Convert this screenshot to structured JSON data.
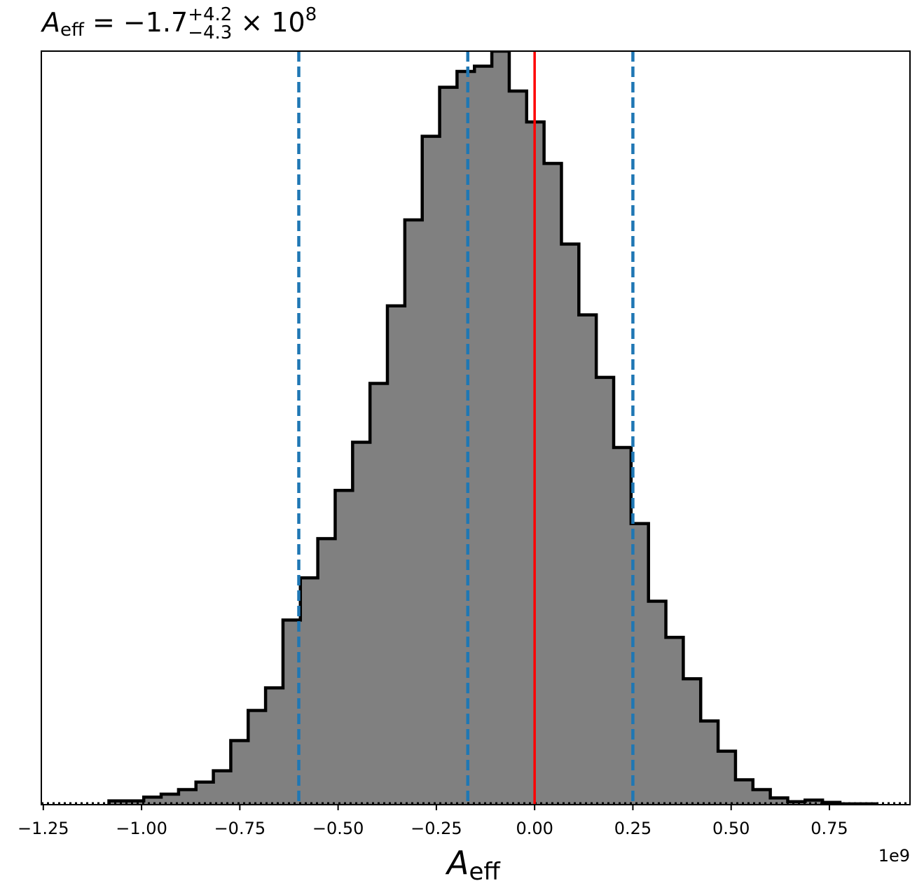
{
  "chart_data": {
    "type": "histogram",
    "title": {
      "symbol": "A",
      "symbol_sub": "eff",
      "equals": " = ",
      "median": "−1.7",
      "upper": "+4.2",
      "lower": "−4.3",
      "times": " × 10",
      "exponent": "8"
    },
    "xlabel": {
      "symbol": "A",
      "sub": "eff"
    },
    "x_offset_label": "1e9",
    "x_multiplier": 1000000000,
    "xlim": [
      -1.255,
      0.955
    ],
    "ylim": [
      0,
      1.0
    ],
    "yticks_shown": false,
    "grid": false,
    "xticks": [
      {
        "value": -1.25,
        "label": "−1.25"
      },
      {
        "value": -1.0,
        "label": "−1.00"
      },
      {
        "value": -0.75,
        "label": "−0.75"
      },
      {
        "value": -0.5,
        "label": "−0.50"
      },
      {
        "value": -0.25,
        "label": "−0.25"
      },
      {
        "value": 0.0,
        "label": "0.00"
      },
      {
        "value": 0.25,
        "label": "0.25"
      },
      {
        "value": 0.5,
        "label": "0.50"
      },
      {
        "value": 0.75,
        "label": "0.75"
      }
    ],
    "bins": {
      "start": -1.083,
      "width": 0.04428,
      "heights": [
        0.005,
        0.005,
        0.01,
        0.014,
        0.02,
        0.03,
        0.045,
        0.085,
        0.125,
        0.155,
        0.245,
        0.301,
        0.353,
        0.417,
        0.481,
        0.559,
        0.662,
        0.776,
        0.887,
        0.952,
        0.973,
        0.98,
        1.0,
        0.947,
        0.906,
        0.851,
        0.744,
        0.65,
        0.567,
        0.474,
        0.373,
        0.27,
        0.222,
        0.167,
        0.111,
        0.071,
        0.033,
        0.02,
        0.009,
        0.004,
        0.006,
        0.003,
        0.001,
        0.001
      ]
    },
    "fill_color": "#808080",
    "edge_color": "#000000",
    "quantile_lines": {
      "values": [
        -0.6,
        -0.17,
        0.25
      ],
      "color": "#1f77b4",
      "style": "dashed"
    },
    "truth_line": {
      "value": 0.0,
      "color": "#ff0000"
    },
    "baseline_line": {
      "value": 0.0,
      "color": "#000000",
      "style": "dotted"
    }
  }
}
